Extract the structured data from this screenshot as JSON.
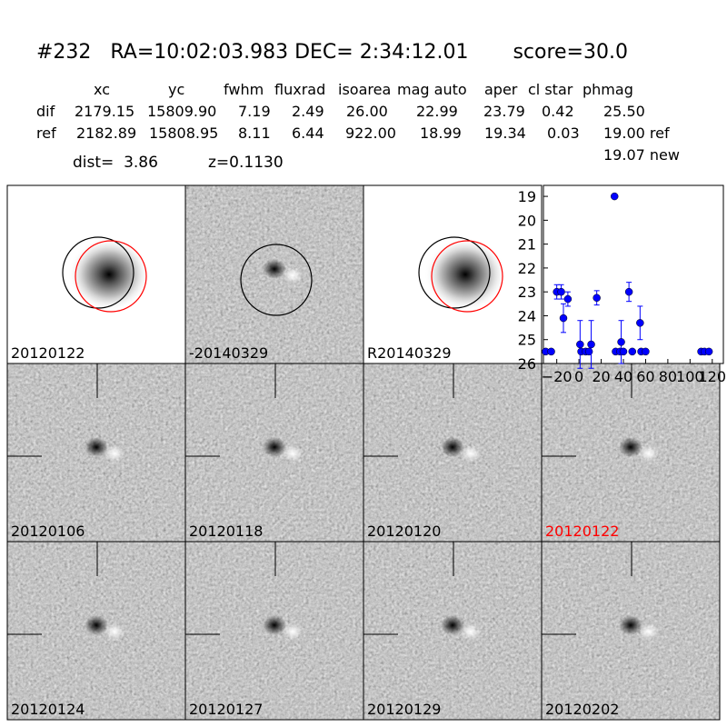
{
  "header": {
    "title": "#232   RA=10:02:03.983 DEC= 2:34:12.01       score=30.0"
  },
  "table": {
    "columns": [
      "xc",
      "yc",
      "fwhm",
      "fluxrad",
      "isoarea",
      "mag auto",
      "aper",
      "cl star",
      "phmag"
    ],
    "rows": [
      {
        "label": "dif",
        "cells": [
          "2179.15",
          "15809.90",
          "7.19",
          "2.49",
          "26.00",
          "22.99",
          "23.79",
          "0.42",
          "25.50"
        ]
      },
      {
        "label": "ref",
        "cells": [
          "2182.89",
          "15808.95",
          "8.11",
          "6.44",
          "922.00",
          "18.99",
          "19.34",
          "0.03",
          "19.00 ref"
        ]
      }
    ],
    "extra": "19.07 new"
  },
  "dist": "dist=  3.86",
  "redshift": "z=0.1130",
  "stamps": [
    {
      "label": "20120122",
      "color": "#000000"
    },
    {
      "label": "-20140329",
      "color": "#000000"
    },
    {
      "label": "R20140329",
      "color": "#000000"
    },
    {
      "label": "20120106",
      "color": "#000000"
    },
    {
      "label": "20120118",
      "color": "#000000"
    },
    {
      "label": "20120120",
      "color": "#000000"
    },
    {
      "label": "20120122",
      "color": "#ff0000"
    },
    {
      "label": "20120124",
      "color": "#000000"
    },
    {
      "label": "20120127",
      "color": "#000000"
    },
    {
      "label": "20120129",
      "color": "#000000"
    },
    {
      "label": "20120202",
      "color": "#000000"
    }
  ],
  "chart_data": {
    "type": "scatter",
    "x": [
      -30,
      -25,
      -20,
      -16,
      -14,
      -10,
      1,
      2,
      6,
      9,
      11,
      16,
      32,
      33,
      37,
      38,
      40,
      45,
      48,
      55,
      56,
      60,
      110,
      113,
      117
    ],
    "series": [
      {
        "color": "#0000ff",
        "values": [
          25.5,
          25.5,
          23.0,
          23.0,
          24.1,
          23.3,
          25.2,
          25.5,
          25.5,
          25.5,
          25.2,
          23.25,
          19.0,
          25.5,
          25.5,
          25.1,
          25.5,
          23.0,
          25.5,
          24.3,
          25.5,
          25.5,
          25.5,
          25.5,
          25.5
        ],
        "errors": [
          0,
          0,
          0.3,
          0.3,
          0.6,
          0.3,
          1.0,
          0,
          0,
          0,
          1.0,
          0.3,
          0,
          0,
          0,
          0.9,
          0,
          0.4,
          0,
          0.7,
          0,
          0,
          0,
          0,
          0
        ]
      }
    ],
    "xlim": [
      -32,
      130
    ],
    "ylim": [
      26,
      18.54
    ],
    "xticks": [
      {
        "value": -20,
        "label": "−20"
      },
      0,
      20,
      40,
      60,
      80,
      100,
      120
    ],
    "yticks": [
      19,
      20,
      21,
      22,
      23,
      24,
      25,
      26
    ]
  }
}
